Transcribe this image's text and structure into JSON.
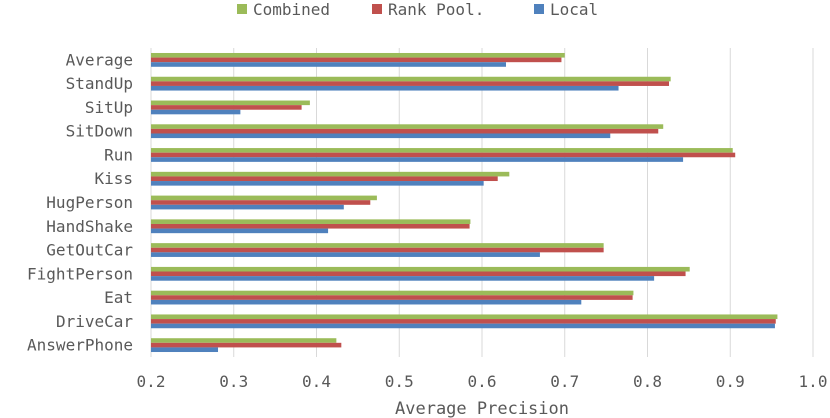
{
  "chart_data": {
    "type": "bar",
    "orientation": "horizontal",
    "xlabel": "Average Precision",
    "ylabel": "",
    "xlim": [
      0.2,
      1.0
    ],
    "xticks": [
      "0.2",
      "0.3",
      "0.4",
      "0.5",
      "0.6",
      "0.7",
      "0.8",
      "0.9",
      "1.0"
    ],
    "grid": true,
    "legend_position": "top",
    "categories": [
      "Average",
      "StandUp",
      "SitUp",
      "SitDown",
      "Run",
      "Kiss",
      "HugPerson",
      "HandShake",
      "GetOutCar",
      "FightPerson",
      "Eat",
      "DriveCar",
      "AnswerPhone"
    ],
    "series": [
      {
        "name": "Combined",
        "color": "#9bbb59",
        "values": [
          0.7,
          0.828,
          0.392,
          0.819,
          0.903,
          0.633,
          0.473,
          0.586,
          0.747,
          0.851,
          0.783,
          0.957,
          0.424
        ]
      },
      {
        "name": "Rank Pool.",
        "color": "#c0504d",
        "values": [
          0.696,
          0.826,
          0.382,
          0.813,
          0.906,
          0.619,
          0.465,
          0.585,
          0.747,
          0.846,
          0.782,
          0.955,
          0.43
        ]
      },
      {
        "name": "Local",
        "color": "#4f81bd",
        "values": [
          0.629,
          0.765,
          0.308,
          0.755,
          0.843,
          0.602,
          0.433,
          0.414,
          0.67,
          0.808,
          0.72,
          0.954,
          0.281
        ]
      }
    ]
  }
}
